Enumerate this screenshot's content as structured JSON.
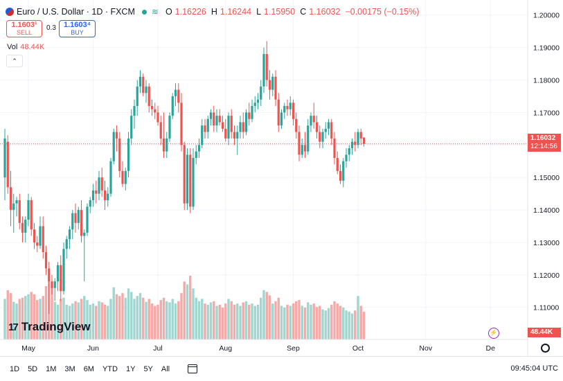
{
  "legend": {
    "symbol": "Euro / U.S. Dollar · 1D · FXCM",
    "market_icon": "flag-icon",
    "o_label": "O",
    "o_value": "1.16226",
    "h_label": "H",
    "h_value": "1.16244",
    "l_label": "L",
    "l_value": "1.15950",
    "c_label": "C",
    "c_value": "1.16032",
    "change": "−0.00175 (−0.15%)"
  },
  "trade": {
    "sell_price": "1.1603¹",
    "sell_label": "SELL",
    "spread": "0.3",
    "buy_price": "1.1603⁴",
    "buy_label": "BUY"
  },
  "volume_legend": {
    "label": "Vol",
    "value": "48.44K"
  },
  "last_price": {
    "price": "1.16032",
    "countdown": "12:14:56"
  },
  "volume_tag": "48.44K",
  "logo": {
    "mark": "17",
    "text": "TradingView"
  },
  "timeframes": [
    "1D",
    "5D",
    "1M",
    "3M",
    "6M",
    "YTD",
    "1Y",
    "5Y",
    "All"
  ],
  "clock": "09:45:04 UTC",
  "colors": {
    "up": "#26a69a",
    "down": "#ef5350",
    "up_vol": "#9fd6cf",
    "down_vol": "#f4aaa8",
    "grid": "#f0f3fa"
  },
  "chart_data": {
    "type": "candlestick",
    "title": "Euro / U.S. Dollar · 1D · FXCM",
    "ylim": [
      1.098,
      1.2025
    ],
    "y_ticks": [
      "1.20000",
      "1.19000",
      "1.18000",
      "1.17000",
      "1.16000",
      "1.15000",
      "1.14000",
      "1.13000",
      "1.12000",
      "1.11000"
    ],
    "y_tick_values": [
      1.2,
      1.19,
      1.18,
      1.17,
      1.16,
      1.15,
      1.14,
      1.13,
      1.12,
      1.11
    ],
    "x_labels": [
      "May",
      "Jun",
      "Jul",
      "Aug",
      "Sep",
      "Oct",
      "Nov",
      "De"
    ],
    "x_label_indices": [
      8,
      30,
      52,
      75,
      98,
      120,
      143,
      165
    ],
    "total_slots": 170,
    "volume_max": 110,
    "candles": [
      {
        "o": 1.15,
        "h": 1.165,
        "l": 1.143,
        "c": 1.162,
        "v": 70
      },
      {
        "o": 1.161,
        "h": 1.163,
        "l": 1.145,
        "c": 1.147,
        "v": 85
      },
      {
        "o": 1.147,
        "h": 1.152,
        "l": 1.135,
        "c": 1.14,
        "v": 80
      },
      {
        "o": 1.14,
        "h": 1.145,
        "l": 1.133,
        "c": 1.142,
        "v": 65
      },
      {
        "o": 1.142,
        "h": 1.144,
        "l": 1.138,
        "c": 1.143,
        "v": 62
      },
      {
        "o": 1.143,
        "h": 1.145,
        "l": 1.134,
        "c": 1.136,
        "v": 70
      },
      {
        "o": 1.136,
        "h": 1.138,
        "l": 1.13,
        "c": 1.133,
        "v": 72
      },
      {
        "o": 1.133,
        "h": 1.138,
        "l": 1.13,
        "c": 1.137,
        "v": 75
      },
      {
        "o": 1.137,
        "h": 1.145,
        "l": 1.135,
        "c": 1.143,
        "v": 78
      },
      {
        "o": 1.143,
        "h": 1.144,
        "l": 1.132,
        "c": 1.134,
        "v": 82
      },
      {
        "o": 1.134,
        "h": 1.136,
        "l": 1.128,
        "c": 1.13,
        "v": 78
      },
      {
        "o": 1.13,
        "h": 1.132,
        "l": 1.127,
        "c": 1.129,
        "v": 68
      },
      {
        "o": 1.129,
        "h": 1.138,
        "l": 1.128,
        "c": 1.135,
        "v": 70
      },
      {
        "o": 1.135,
        "h": 1.138,
        "l": 1.125,
        "c": 1.127,
        "v": 75
      },
      {
        "o": 1.127,
        "h": 1.129,
        "l": 1.12,
        "c": 1.122,
        "v": 92
      },
      {
        "o": 1.122,
        "h": 1.124,
        "l": 1.108,
        "c": 1.118,
        "v": 100
      },
      {
        "o": 1.118,
        "h": 1.12,
        "l": 1.114,
        "c": 1.116,
        "v": 90
      },
      {
        "o": 1.116,
        "h": 1.119,
        "l": 1.112,
        "c": 1.118,
        "v": 65
      },
      {
        "o": 1.118,
        "h": 1.124,
        "l": 1.115,
        "c": 1.123,
        "v": 60
      },
      {
        "o": 1.123,
        "h": 1.126,
        "l": 1.112,
        "c": 1.115,
        "v": 70
      },
      {
        "o": 1.115,
        "h": 1.13,
        "l": 1.114,
        "c": 1.128,
        "v": 72
      },
      {
        "o": 1.128,
        "h": 1.132,
        "l": 1.125,
        "c": 1.131,
        "v": 60
      },
      {
        "o": 1.131,
        "h": 1.135,
        "l": 1.128,
        "c": 1.134,
        "v": 58
      },
      {
        "o": 1.134,
        "h": 1.14,
        "l": 1.131,
        "c": 1.139,
        "v": 62
      },
      {
        "o": 1.139,
        "h": 1.142,
        "l": 1.133,
        "c": 1.136,
        "v": 66
      },
      {
        "o": 1.136,
        "h": 1.141,
        "l": 1.134,
        "c": 1.14,
        "v": 64
      },
      {
        "o": 1.14,
        "h": 1.143,
        "l": 1.13,
        "c": 1.132,
        "v": 70
      },
      {
        "o": 1.132,
        "h": 1.134,
        "l": 1.118,
        "c": 1.133,
        "v": 75
      },
      {
        "o": 1.133,
        "h": 1.142,
        "l": 1.132,
        "c": 1.141,
        "v": 68
      },
      {
        "o": 1.141,
        "h": 1.144,
        "l": 1.139,
        "c": 1.143,
        "v": 60
      },
      {
        "o": 1.143,
        "h": 1.148,
        "l": 1.141,
        "c": 1.146,
        "v": 62
      },
      {
        "o": 1.146,
        "h": 1.149,
        "l": 1.142,
        "c": 1.145,
        "v": 58
      },
      {
        "o": 1.145,
        "h": 1.152,
        "l": 1.143,
        "c": 1.15,
        "v": 66
      },
      {
        "o": 1.15,
        "h": 1.153,
        "l": 1.144,
        "c": 1.146,
        "v": 64
      },
      {
        "o": 1.146,
        "h": 1.149,
        "l": 1.14,
        "c": 1.143,
        "v": 60
      },
      {
        "o": 1.143,
        "h": 1.147,
        "l": 1.141,
        "c": 1.145,
        "v": 58
      },
      {
        "o": 1.145,
        "h": 1.156,
        "l": 1.144,
        "c": 1.155,
        "v": 70
      },
      {
        "o": 1.155,
        "h": 1.165,
        "l": 1.154,
        "c": 1.164,
        "v": 90
      },
      {
        "o": 1.164,
        "h": 1.166,
        "l": 1.158,
        "c": 1.162,
        "v": 78
      },
      {
        "o": 1.162,
        "h": 1.164,
        "l": 1.15,
        "c": 1.152,
        "v": 75
      },
      {
        "o": 1.152,
        "h": 1.155,
        "l": 1.147,
        "c": 1.148,
        "v": 80
      },
      {
        "o": 1.148,
        "h": 1.153,
        "l": 1.146,
        "c": 1.152,
        "v": 72
      },
      {
        "o": 1.152,
        "h": 1.164,
        "l": 1.15,
        "c": 1.162,
        "v": 88
      },
      {
        "o": 1.162,
        "h": 1.171,
        "l": 1.16,
        "c": 1.169,
        "v": 82
      },
      {
        "o": 1.169,
        "h": 1.174,
        "l": 1.165,
        "c": 1.172,
        "v": 70
      },
      {
        "o": 1.172,
        "h": 1.18,
        "l": 1.169,
        "c": 1.178,
        "v": 75
      },
      {
        "o": 1.178,
        "h": 1.183,
        "l": 1.176,
        "c": 1.181,
        "v": 80
      },
      {
        "o": 1.181,
        "h": 1.182,
        "l": 1.175,
        "c": 1.176,
        "v": 72
      },
      {
        "o": 1.176,
        "h": 1.18,
        "l": 1.173,
        "c": 1.178,
        "v": 65
      },
      {
        "o": 1.178,
        "h": 1.179,
        "l": 1.17,
        "c": 1.172,
        "v": 70
      },
      {
        "o": 1.172,
        "h": 1.174,
        "l": 1.169,
        "c": 1.171,
        "v": 62
      },
      {
        "o": 1.171,
        "h": 1.173,
        "l": 1.168,
        "c": 1.17,
        "v": 58
      },
      {
        "o": 1.17,
        "h": 1.172,
        "l": 1.166,
        "c": 1.167,
        "v": 60
      },
      {
        "o": 1.167,
        "h": 1.169,
        "l": 1.16,
        "c": 1.162,
        "v": 68
      },
      {
        "o": 1.162,
        "h": 1.17,
        "l": 1.156,
        "c": 1.158,
        "v": 72
      },
      {
        "o": 1.158,
        "h": 1.164,
        "l": 1.156,
        "c": 1.162,
        "v": 66
      },
      {
        "o": 1.162,
        "h": 1.17,
        "l": 1.161,
        "c": 1.169,
        "v": 64
      },
      {
        "o": 1.169,
        "h": 1.176,
        "l": 1.168,
        "c": 1.175,
        "v": 70
      },
      {
        "o": 1.175,
        "h": 1.179,
        "l": 1.172,
        "c": 1.177,
        "v": 62
      },
      {
        "o": 1.177,
        "h": 1.179,
        "l": 1.17,
        "c": 1.173,
        "v": 66
      },
      {
        "o": 1.173,
        "h": 1.176,
        "l": 1.158,
        "c": 1.16,
        "v": 80
      },
      {
        "o": 1.16,
        "h": 1.161,
        "l": 1.14,
        "c": 1.142,
        "v": 100
      },
      {
        "o": 1.142,
        "h": 1.159,
        "l": 1.14,
        "c": 1.157,
        "v": 95
      },
      {
        "o": 1.157,
        "h": 1.159,
        "l": 1.139,
        "c": 1.141,
        "v": 110
      },
      {
        "o": 1.141,
        "h": 1.159,
        "l": 1.14,
        "c": 1.156,
        "v": 88
      },
      {
        "o": 1.156,
        "h": 1.16,
        "l": 1.154,
        "c": 1.158,
        "v": 72
      },
      {
        "o": 1.158,
        "h": 1.162,
        "l": 1.156,
        "c": 1.16,
        "v": 66
      },
      {
        "o": 1.16,
        "h": 1.168,
        "l": 1.159,
        "c": 1.166,
        "v": 70
      },
      {
        "o": 1.166,
        "h": 1.168,
        "l": 1.162,
        "c": 1.164,
        "v": 62
      },
      {
        "o": 1.164,
        "h": 1.169,
        "l": 1.162,
        "c": 1.168,
        "v": 60
      },
      {
        "o": 1.168,
        "h": 1.171,
        "l": 1.166,
        "c": 1.17,
        "v": 64
      },
      {
        "o": 1.17,
        "h": 1.172,
        "l": 1.164,
        "c": 1.166,
        "v": 66
      },
      {
        "o": 1.166,
        "h": 1.171,
        "l": 1.164,
        "c": 1.169,
        "v": 58
      },
      {
        "o": 1.169,
        "h": 1.171,
        "l": 1.166,
        "c": 1.167,
        "v": 60
      },
      {
        "o": 1.167,
        "h": 1.169,
        "l": 1.164,
        "c": 1.165,
        "v": 55
      },
      {
        "o": 1.165,
        "h": 1.168,
        "l": 1.161,
        "c": 1.162,
        "v": 62
      },
      {
        "o": 1.162,
        "h": 1.17,
        "l": 1.16,
        "c": 1.169,
        "v": 70
      },
      {
        "o": 1.169,
        "h": 1.171,
        "l": 1.162,
        "c": 1.164,
        "v": 66
      },
      {
        "o": 1.164,
        "h": 1.166,
        "l": 1.16,
        "c": 1.162,
        "v": 60
      },
      {
        "o": 1.162,
        "h": 1.166,
        "l": 1.157,
        "c": 1.164,
        "v": 62
      },
      {
        "o": 1.164,
        "h": 1.169,
        "l": 1.162,
        "c": 1.167,
        "v": 58
      },
      {
        "o": 1.167,
        "h": 1.17,
        "l": 1.162,
        "c": 1.164,
        "v": 64
      },
      {
        "o": 1.164,
        "h": 1.171,
        "l": 1.163,
        "c": 1.17,
        "v": 66
      },
      {
        "o": 1.17,
        "h": 1.173,
        "l": 1.166,
        "c": 1.168,
        "v": 60
      },
      {
        "o": 1.168,
        "h": 1.174,
        "l": 1.167,
        "c": 1.172,
        "v": 62
      },
      {
        "o": 1.172,
        "h": 1.175,
        "l": 1.17,
        "c": 1.173,
        "v": 58
      },
      {
        "o": 1.173,
        "h": 1.176,
        "l": 1.171,
        "c": 1.174,
        "v": 60
      },
      {
        "o": 1.174,
        "h": 1.18,
        "l": 1.172,
        "c": 1.178,
        "v": 72
      },
      {
        "o": 1.178,
        "h": 1.19,
        "l": 1.176,
        "c": 1.188,
        "v": 85
      },
      {
        "o": 1.188,
        "h": 1.192,
        "l": 1.178,
        "c": 1.18,
        "v": 82
      },
      {
        "o": 1.18,
        "h": 1.183,
        "l": 1.174,
        "c": 1.177,
        "v": 76
      },
      {
        "o": 1.177,
        "h": 1.182,
        "l": 1.175,
        "c": 1.181,
        "v": 62
      },
      {
        "o": 1.181,
        "h": 1.183,
        "l": 1.172,
        "c": 1.174,
        "v": 66
      },
      {
        "o": 1.174,
        "h": 1.176,
        "l": 1.164,
        "c": 1.166,
        "v": 72
      },
      {
        "o": 1.166,
        "h": 1.171,
        "l": 1.165,
        "c": 1.17,
        "v": 58
      },
      {
        "o": 1.17,
        "h": 1.173,
        "l": 1.168,
        "c": 1.172,
        "v": 55
      },
      {
        "o": 1.172,
        "h": 1.174,
        "l": 1.169,
        "c": 1.171,
        "v": 60
      },
      {
        "o": 1.171,
        "h": 1.175,
        "l": 1.169,
        "c": 1.173,
        "v": 58
      },
      {
        "o": 1.173,
        "h": 1.174,
        "l": 1.166,
        "c": 1.168,
        "v": 62
      },
      {
        "o": 1.168,
        "h": 1.17,
        "l": 1.162,
        "c": 1.164,
        "v": 66
      },
      {
        "o": 1.164,
        "h": 1.166,
        "l": 1.155,
        "c": 1.157,
        "v": 68
      },
      {
        "o": 1.157,
        "h": 1.162,
        "l": 1.156,
        "c": 1.16,
        "v": 58
      },
      {
        "o": 1.16,
        "h": 1.164,
        "l": 1.156,
        "c": 1.158,
        "v": 55
      },
      {
        "o": 1.158,
        "h": 1.168,
        "l": 1.157,
        "c": 1.166,
        "v": 64
      },
      {
        "o": 1.166,
        "h": 1.17,
        "l": 1.164,
        "c": 1.169,
        "v": 60
      },
      {
        "o": 1.169,
        "h": 1.173,
        "l": 1.165,
        "c": 1.167,
        "v": 62
      },
      {
        "o": 1.167,
        "h": 1.169,
        "l": 1.162,
        "c": 1.164,
        "v": 56
      },
      {
        "o": 1.164,
        "h": 1.166,
        "l": 1.159,
        "c": 1.161,
        "v": 58
      },
      {
        "o": 1.161,
        "h": 1.165,
        "l": 1.159,
        "c": 1.164,
        "v": 52
      },
      {
        "o": 1.164,
        "h": 1.167,
        "l": 1.162,
        "c": 1.165,
        "v": 50
      },
      {
        "o": 1.165,
        "h": 1.168,
        "l": 1.163,
        "c": 1.167,
        "v": 54
      },
      {
        "o": 1.167,
        "h": 1.168,
        "l": 1.16,
        "c": 1.162,
        "v": 60
      },
      {
        "o": 1.162,
        "h": 1.164,
        "l": 1.154,
        "c": 1.156,
        "v": 66
      },
      {
        "o": 1.156,
        "h": 1.158,
        "l": 1.151,
        "c": 1.152,
        "v": 62
      },
      {
        "o": 1.152,
        "h": 1.154,
        "l": 1.148,
        "c": 1.149,
        "v": 58
      },
      {
        "o": 1.149,
        "h": 1.156,
        "l": 1.147,
        "c": 1.155,
        "v": 55
      },
      {
        "o": 1.155,
        "h": 1.159,
        "l": 1.153,
        "c": 1.157,
        "v": 50
      },
      {
        "o": 1.157,
        "h": 1.16,
        "l": 1.155,
        "c": 1.159,
        "v": 48
      },
      {
        "o": 1.159,
        "h": 1.162,
        "l": 1.157,
        "c": 1.161,
        "v": 45
      },
      {
        "o": 1.161,
        "h": 1.164,
        "l": 1.158,
        "c": 1.16,
        "v": 50
      },
      {
        "o": 1.16,
        "h": 1.165,
        "l": 1.159,
        "c": 1.164,
        "v": 75
      },
      {
        "o": 1.164,
        "h": 1.165,
        "l": 1.16,
        "c": 1.162,
        "v": 58
      },
      {
        "o": 1.16226,
        "h": 1.16244,
        "l": 1.1595,
        "c": 1.16032,
        "v": 48
      }
    ]
  }
}
